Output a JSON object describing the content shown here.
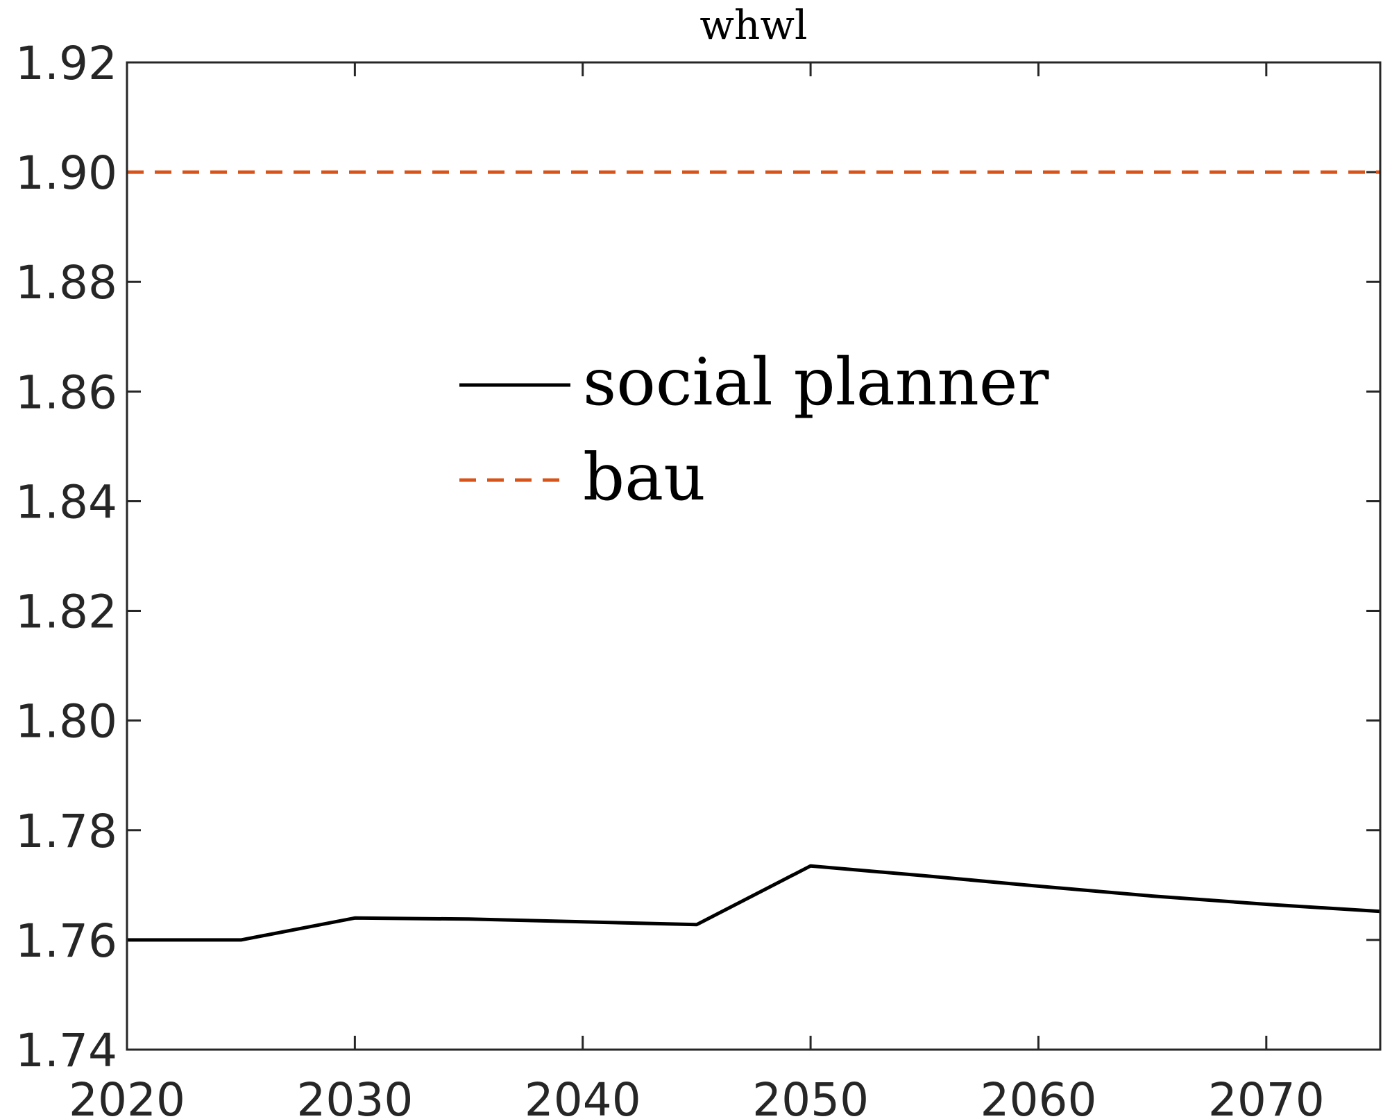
{
  "chart_data": {
    "type": "line",
    "title": "whwl",
    "xlabel": "",
    "ylabel": "",
    "xlim": [
      2020,
      2075
    ],
    "ylim": [
      1.74,
      1.92
    ],
    "x_ticks": [
      "2020",
      "2030",
      "2040",
      "2050",
      "2060",
      "2070"
    ],
    "y_ticks": [
      "1.74",
      "1.76",
      "1.78",
      "1.80",
      "1.82",
      "1.84",
      "1.86",
      "1.88",
      "1.90",
      "1.92"
    ],
    "grid": false,
    "legend_position": "center",
    "x": [
      2020,
      2025,
      2030,
      2035,
      2040,
      2045,
      2050,
      2055,
      2060,
      2065,
      2070,
      2075
    ],
    "series": [
      {
        "name": "social planner",
        "color": "#000000",
        "style": "solid",
        "values": [
          1.76,
          1.76,
          1.764,
          1.7638,
          1.7633,
          1.7628,
          1.7735,
          1.7717,
          1.7698,
          1.768,
          1.7665,
          1.7652
        ]
      },
      {
        "name": "bau",
        "color": "#D95319",
        "style": "dashed",
        "values": [
          1.9,
          1.9,
          1.9,
          1.9,
          1.9,
          1.9,
          1.9,
          1.9,
          1.9,
          1.9,
          1.9,
          1.9
        ]
      }
    ]
  }
}
